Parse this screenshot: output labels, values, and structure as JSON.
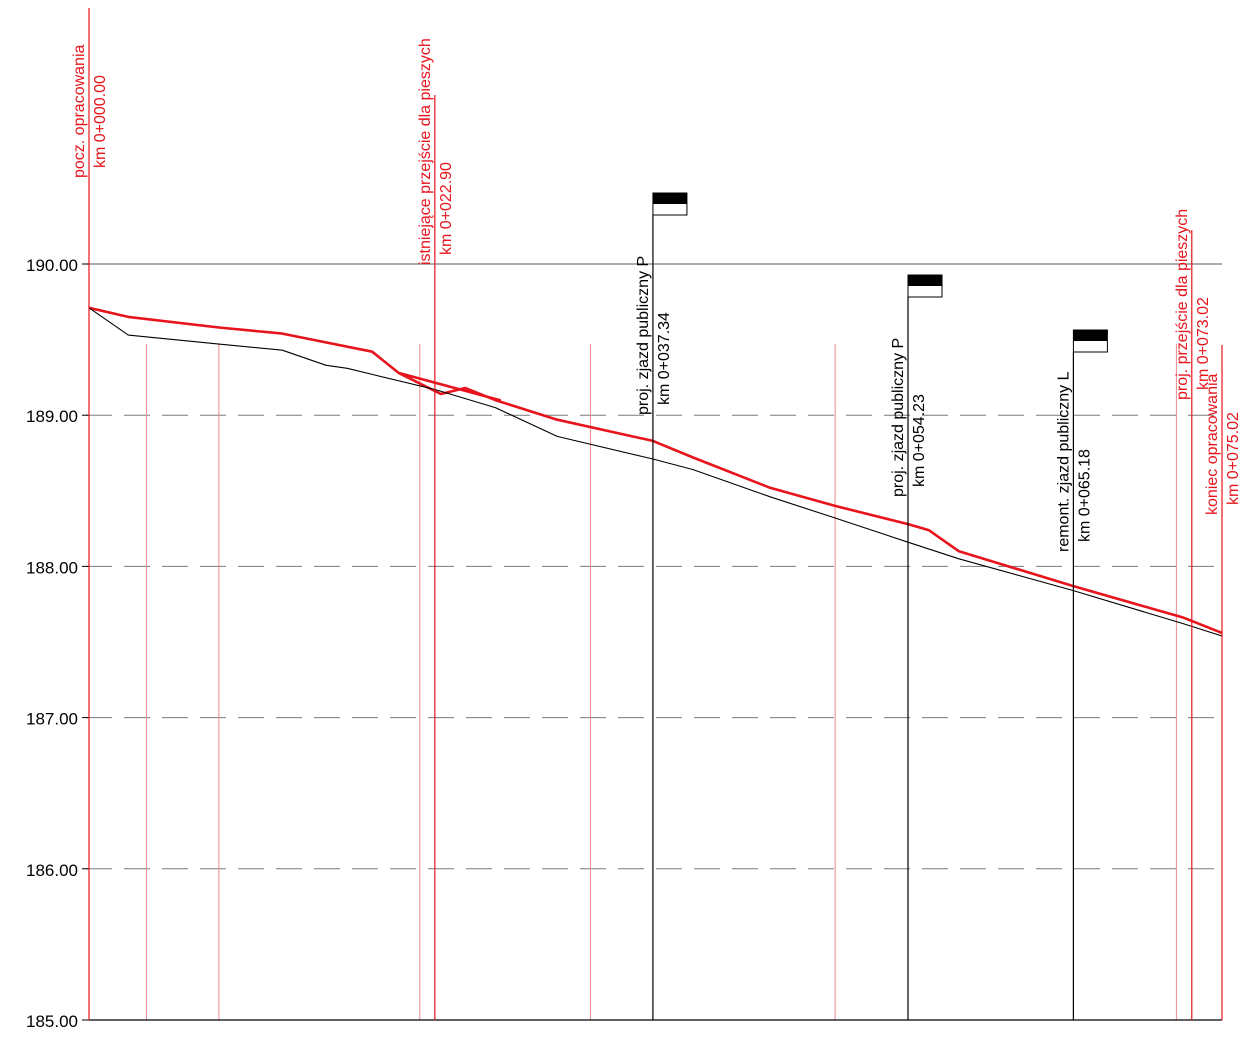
{
  "chart_data": {
    "type": "line",
    "title": "",
    "xlabel": "",
    "ylabel": "",
    "xlim": [
      0,
      75.02
    ],
    "ylim": [
      185,
      190.6
    ],
    "grid": true,
    "y_ticks": [
      "190.00",
      "189.00",
      "188.00",
      "187.00",
      "186.00",
      "185.00"
    ],
    "y_tick_values": [
      190,
      189,
      188,
      187,
      186,
      185
    ],
    "colors": {
      "design": "#e8141c",
      "terrain": "#000000",
      "station_line": "#f08a8a",
      "grid": "#7a7a7a"
    },
    "series": [
      {
        "key": "design",
        "x": [
          0,
          2.6,
          8.6,
          12.8,
          18.75,
          20.5,
          27.2,
          20.5,
          23.3,
          24.9,
          26.9,
          31.0,
          37.34,
          40.0,
          45.1,
          49.4,
          54.23,
          55.6,
          57.6,
          65.18,
          72.5,
          75.02
        ],
        "y": [
          189.71,
          189.65,
          189.58,
          189.54,
          189.42,
          189.28,
          189.1,
          189.28,
          189.14,
          189.18,
          189.1,
          188.97,
          188.83,
          188.72,
          188.52,
          188.4,
          188.28,
          188.24,
          188.1,
          187.87,
          187.66,
          187.56
        ]
      },
      {
        "key": "terrain",
        "x": [
          0,
          2.6,
          8.6,
          12.8,
          15.7,
          17.1,
          18.75,
          22.9,
          26.9,
          31.0,
          37.34,
          40.0,
          45.1,
          49.4,
          54.23,
          57.6,
          65.18,
          72.5,
          75.02
        ],
        "y": [
          189.71,
          189.53,
          189.47,
          189.43,
          189.33,
          189.31,
          189.27,
          189.17,
          189.05,
          188.86,
          188.71,
          188.64,
          188.46,
          188.32,
          188.16,
          188.05,
          187.84,
          187.62,
          187.54
        ]
      }
    ],
    "station_lines": [
      3.8,
      8.6,
      21.9,
      33.2,
      49.4,
      72.0
    ],
    "stations": [
      {
        "x": 0.0,
        "name": "pocz. opracowania",
        "km": "km 0+000.00",
        "color": "red"
      },
      {
        "x": 22.9,
        "name": "istniejące przejście dla pieszych",
        "km": "km 0+022.90",
        "color": "red"
      },
      {
        "x": 37.34,
        "name": "proj. zjazd publiczny P",
        "km": "km 0+037.34",
        "color": "black"
      },
      {
        "x": 54.23,
        "name": "proj. zjazd publiczny P",
        "km": "km 0+054.23",
        "color": "black"
      },
      {
        "x": 65.18,
        "name": "remont. zjazd publiczny L",
        "km": "km 0+065.18",
        "color": "black"
      },
      {
        "x": 73.02,
        "name": "proj. przejście dla pieszych",
        "km": "km 0+073.02",
        "color": "red"
      },
      {
        "x": 75.02,
        "name": "koniec opracowania",
        "km": "km 0+075.02",
        "color": "red"
      }
    ]
  }
}
